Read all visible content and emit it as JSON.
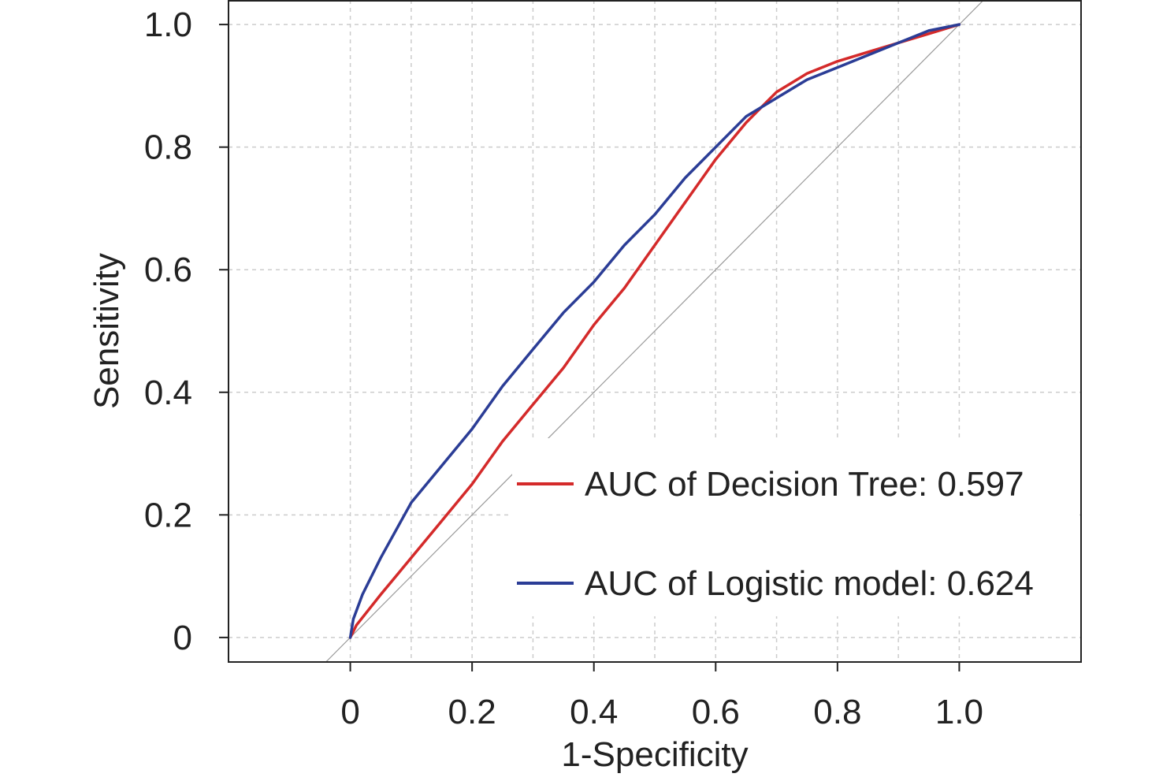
{
  "chart_data": {
    "type": "line",
    "title": "",
    "xlabel": "1-Specificity",
    "ylabel": "Sensitivity",
    "xlim": [
      -0.2,
      1.2
    ],
    "ylim": [
      -0.04,
      1.04
    ],
    "x_ticks": [
      0,
      0.2,
      0.4,
      0.6,
      0.8,
      1.0
    ],
    "x_tick_labels": [
      "0",
      "0.2",
      "0.4",
      "0.6",
      "0.8",
      "1.0"
    ],
    "y_ticks": [
      0,
      0.2,
      0.4,
      0.6,
      0.8,
      1.0
    ],
    "y_tick_labels": [
      "0",
      "0.2",
      "0.4",
      "0.6",
      "0.8",
      "1.0"
    ],
    "grid": true,
    "reference_line": "diagonal",
    "legend_position": "bottom-right",
    "series": [
      {
        "name": "AUC of Decision Tree: 0.597",
        "color": "#d42a2a",
        "x": [
          0,
          0.01,
          0.05,
          0.1,
          0.15,
          0.2,
          0.25,
          0.3,
          0.35,
          0.4,
          0.45,
          0.5,
          0.55,
          0.6,
          0.65,
          0.7,
          0.75,
          0.8,
          0.85,
          0.9,
          0.95,
          1.0
        ],
        "y": [
          0,
          0.02,
          0.07,
          0.13,
          0.19,
          0.25,
          0.32,
          0.38,
          0.44,
          0.51,
          0.57,
          0.64,
          0.71,
          0.78,
          0.84,
          0.89,
          0.92,
          0.94,
          0.955,
          0.97,
          0.985,
          1.0
        ]
      },
      {
        "name": "AUC of Logistic model: 0.624",
        "color": "#2b3d96",
        "x": [
          0,
          0.005,
          0.02,
          0.05,
          0.1,
          0.15,
          0.2,
          0.25,
          0.3,
          0.35,
          0.4,
          0.45,
          0.5,
          0.55,
          0.6,
          0.65,
          0.7,
          0.75,
          0.8,
          0.85,
          0.9,
          0.95,
          1.0
        ],
        "y": [
          0,
          0.03,
          0.07,
          0.13,
          0.22,
          0.28,
          0.34,
          0.41,
          0.47,
          0.53,
          0.58,
          0.64,
          0.69,
          0.75,
          0.8,
          0.85,
          0.88,
          0.91,
          0.93,
          0.95,
          0.97,
          0.99,
          1.0
        ]
      }
    ]
  }
}
